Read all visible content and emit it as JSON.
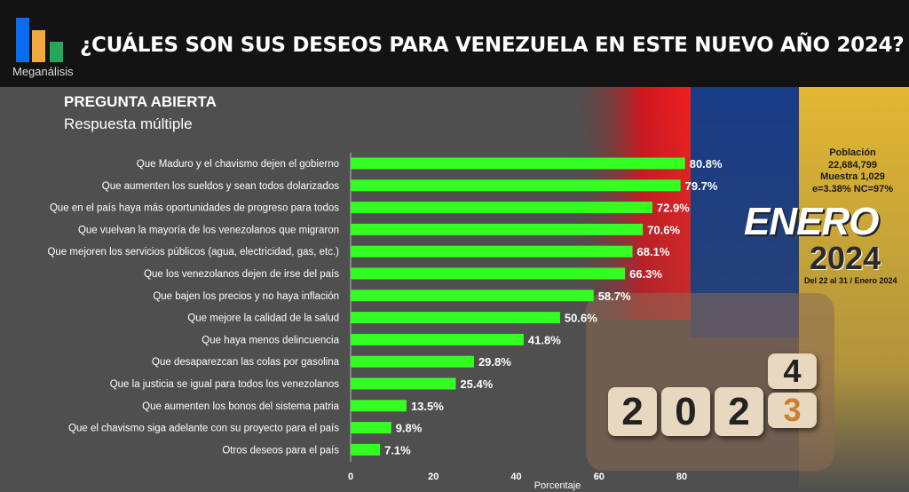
{
  "header": {
    "brand": "Meganálisis",
    "title": "¿CUÁLES SON SUS DESEOS PARA VENEZUELA EN ESTE NUEVO AÑO 2024?"
  },
  "subtitle": {
    "line1": "PREGUNTA  ABIERTA",
    "line2": "Respuesta múltiple"
  },
  "info": {
    "population_label": "Población",
    "population": "22,684,799",
    "sample": "Muestra 1,029",
    "error": "e=3.38%  NC=97%",
    "month": "ENERO",
    "year": "2024",
    "dates": "Del 22 al 31 / Enero 2024"
  },
  "dice": [
    "2",
    "0",
    "2",
    "4",
    "3"
  ],
  "colors": {
    "bar": "#33ff22",
    "header": "#131313",
    "background": "#4f4f4f",
    "logo": [
      "#0a6cf5",
      "#f2a93b",
      "#23a85a"
    ]
  },
  "chart_data": {
    "type": "bar",
    "orientation": "horizontal",
    "categories": [
      "Que Maduro y el chavismo dejen el gobierno",
      "Que aumenten los sueldos y sean todos dolarizados",
      "Que en el país haya más oportunidades de progreso para todos",
      "Que vuelvan la mayoría de los venezolanos que migraron",
      "Que mejoren los servicios públicos (agua, electricidad, gas, etc.)",
      "Que los venezolanos dejen de irse del país",
      "Que bajen los precios y no haya inflación",
      "Que mejore la calidad de la salud",
      "Que haya menos delincuencia",
      "Que desaparezcan las colas por gasolina",
      "Que la justicia se igual para todos los venezolanos",
      "Que aumenten los bonos del sistema patria",
      "Que el chavismo siga adelante con su proyecto para el país",
      "Otros deseos para el país"
    ],
    "values": [
      80.8,
      79.7,
      72.9,
      70.6,
      68.1,
      66.3,
      58.7,
      50.6,
      41.8,
      29.8,
      25.4,
      13.5,
      9.8,
      7.1
    ],
    "labels": [
      "80.8%",
      "79.7%",
      "72.9%",
      "70.6%",
      "68.1%",
      "66.3%",
      "58.7%",
      "50.6%",
      "41.8%",
      "29.8%",
      "25.4%",
      "13.5%",
      "9.8%",
      "7.1%"
    ],
    "xlabel": "Porcentaje",
    "xlim": [
      0,
      80
    ],
    "xticks": [
      "0",
      "20",
      "40",
      "60",
      "80"
    ],
    "grid": false
  }
}
